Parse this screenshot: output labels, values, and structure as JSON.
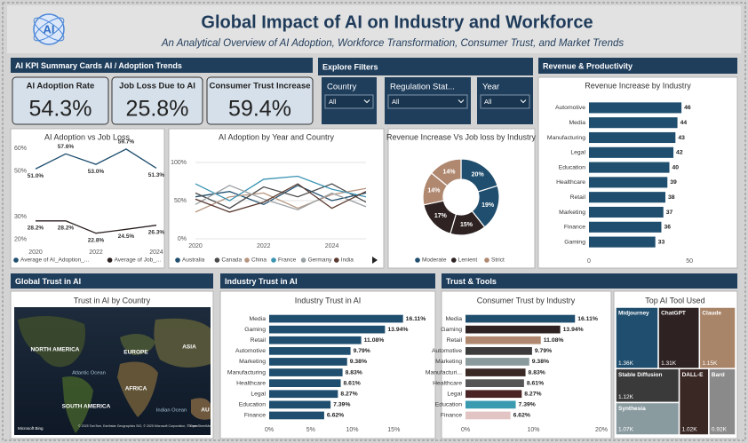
{
  "header": {
    "logo": "AI",
    "title": "Global Impact of AI on Industry and Workforce",
    "subtitle": "An Analytical Overview of AI Adoption, Workforce Transformation, Consumer Trust, and Market Trends"
  },
  "sections": [
    "AI KPI Summary Cards AI / Adoption Trends",
    "Explore Filters",
    "Revenue & Productivity",
    "Global Trust in AI",
    "Industry Trust in AI",
    "Trust & Tools"
  ],
  "kpis": [
    {
      "label": "AI Adoption Rate",
      "value": "54.3%"
    },
    {
      "label": "Job Loss Due to AI",
      "value": "25.8%"
    },
    {
      "label": "Consumer Trust Increase",
      "value": "59.4%"
    }
  ],
  "filters": [
    {
      "label": "Country",
      "value": "All"
    },
    {
      "label": "Regulation Stat...",
      "value": "All"
    },
    {
      "label": "Year",
      "value": "All"
    }
  ],
  "chart_data": [
    {
      "type": "line",
      "title": "AI Adoption vs Job Loss",
      "x": [
        2020,
        2021,
        2022,
        2023,
        2024
      ],
      "xlim": [
        2020,
        2024
      ],
      "xticks": [
        2020,
        2022,
        2024
      ],
      "ylim": [
        18,
        62
      ],
      "yticks": [
        {
          "value": 20,
          "label": "20%"
        },
        {
          "value": 30,
          "label": "30%"
        },
        {
          "value": 50,
          "label": "50%"
        },
        {
          "value": 60,
          "label": "60%"
        }
      ],
      "grid": false,
      "series": [
        {
          "name": "Average of AI_Adoption_...",
          "color": "#1f4e6e",
          "values": [
            51.0,
            57.6,
            53.0,
            59.7,
            51.3
          ],
          "value_labels": [
            "51.0%",
            "57.6%",
            "53.0%",
            "59.7%",
            "51.3%"
          ]
        },
        {
          "name": "Average of Job_...",
          "color": "#2b2020",
          "values": [
            28.2,
            28.2,
            22.8,
            24.5,
            26.3
          ],
          "value_labels": [
            "28.2%",
            "28.2%",
            "22.8%",
            "24.5%",
            "26.3%"
          ]
        }
      ]
    },
    {
      "type": "line",
      "title": "AI Adoption by Year and Country",
      "x": [
        2020,
        2021,
        2022,
        2023,
        2024,
        2025
      ],
      "xlim": [
        2020,
        2025
      ],
      "xticks": [
        2020,
        2022,
        2024
      ],
      "ylim": [
        0,
        100
      ],
      "yticks": [
        {
          "value": 0,
          "label": "0%"
        },
        {
          "value": 50,
          "label": "50%"
        },
        {
          "value": 100,
          "label": "100%"
        }
      ],
      "grid": true,
      "series": [
        {
          "name": "Australia",
          "color": "#1f4e6e",
          "values": [
            55,
            62,
            45,
            70,
            50,
            60
          ]
        },
        {
          "name": "Canada",
          "color": "#4a4a4a",
          "values": [
            60,
            40,
            68,
            55,
            72,
            48
          ]
        },
        {
          "name": "China",
          "color": "#b59580",
          "values": [
            35,
            55,
            60,
            40,
            58,
            66
          ]
        },
        {
          "name": "France",
          "color": "#3a93b3",
          "values": [
            72,
            50,
            78,
            82,
            65,
            55
          ]
        },
        {
          "name": "Germany",
          "color": "#9aa0a3",
          "values": [
            45,
            70,
            52,
            38,
            60,
            42
          ]
        },
        {
          "name": "India",
          "color": "#5a3a30",
          "values": [
            52,
            35,
            48,
            72,
            40,
            62
          ]
        }
      ]
    },
    {
      "type": "donut",
      "title": "Revenue Increase Vs Job loss by Industry",
      "series": [
        {
          "name": "Moderate",
          "color": "#1f4e6e",
          "values": [
            20,
            19
          ],
          "value_labels": [
            "20%",
            "19%"
          ]
        },
        {
          "name": "Lenient",
          "color": "#2e2222",
          "values": [
            15,
            17
          ],
          "value_labels": [
            "15%",
            "17%"
          ]
        },
        {
          "name": "Strict",
          "color": "#b08870",
          "values": [
            14,
            14
          ],
          "value_labels": [
            "14%",
            "14%"
          ]
        }
      ]
    },
    {
      "type": "hbar",
      "title": "Revenue Increase by Industry",
      "categories": [
        "Automotive",
        "Media",
        "Manufacturing",
        "Legal",
        "Education",
        "Healthcare",
        "Retail",
        "Marketing",
        "Finance",
        "Gaming"
      ],
      "values": [
        46,
        44,
        43,
        42,
        40,
        39,
        38,
        37,
        36,
        33
      ],
      "color": "#1f4e6e",
      "xlim": [
        0,
        57
      ],
      "xticks": [
        0,
        50
      ]
    },
    {
      "type": "map",
      "title": "Trust in AI by Country",
      "labels": [
        "NORTH AMERICA",
        "EUROPE",
        "ASIA",
        "Atlantic Ocean",
        "AFRICA",
        "SOUTH AMERICA",
        "Indian Ocean",
        "AU"
      ],
      "brand": "Microsoft Bing",
      "attribution": "© 2025 TomTom, Earthstar Geographics SIO, © 2025 Microsoft Corporation, © OpenStreetMap",
      "terms": "Terms"
    },
    {
      "type": "hbar",
      "title": "Industry Trust in AI",
      "categories": [
        "Media",
        "Gaming",
        "Retail",
        "Automotive",
        "Marketing",
        "Manufacturing",
        "Healthcare",
        "Legal",
        "Education",
        "Finance"
      ],
      "values": [
        16.11,
        13.94,
        11.08,
        9.79,
        9.38,
        8.83,
        8.61,
        8.27,
        7.39,
        6.62
      ],
      "value_labels": [
        "16.11%",
        "13.94%",
        "11.08%",
        "9.79%",
        "9.38%",
        "8.83%",
        "8.61%",
        "8.27%",
        "7.39%",
        "6.62%"
      ],
      "color": "#1f4e6e",
      "xlim": [
        0,
        17
      ],
      "xticks": [
        {
          "value": 0,
          "label": "0%"
        },
        {
          "value": 5,
          "label": "5%"
        },
        {
          "value": 10,
          "label": "10%"
        },
        {
          "value": 15,
          "label": "15%"
        }
      ]
    },
    {
      "type": "hbar",
      "title": "Consumer Trust by Industry",
      "categories": [
        "Media",
        "Gaming",
        "Retail",
        "Automotive",
        "Marketing",
        "Manufacturi...",
        "Healthcare",
        "Legal",
        "Education",
        "Finance"
      ],
      "values": [
        16.11,
        13.94,
        11.08,
        9.79,
        9.38,
        8.83,
        8.61,
        8.27,
        7.39,
        6.62
      ],
      "value_labels": [
        "16.11%",
        "13.94%",
        "11.08%",
        "9.79%",
        "9.38%",
        "8.83%",
        "8.61%",
        "8.27%",
        "7.39%",
        "6.62%"
      ],
      "colors": [
        "#1f4e6e",
        "#2e2222",
        "#b08870",
        "#3c3c3c",
        "#8a9a9d",
        "#3a2824",
        "#555555",
        "#4a2424",
        "#3a9ab0",
        "#e2c4c4"
      ],
      "xlim": [
        0,
        20
      ],
      "xticks": [
        {
          "value": 0,
          "label": "0%"
        },
        {
          "value": 10,
          "label": "10%"
        },
        {
          "value": 20,
          "label": "20%"
        }
      ]
    },
    {
      "type": "treemap",
      "title": "Top AI Tool Used",
      "categories": [
        "Midjourney",
        "ChatGPT",
        "Claude",
        "Stable Diffusion",
        "Synthesia",
        "DALL-E",
        "Bard"
      ],
      "values": [
        1360,
        1310,
        1150,
        1120,
        1070,
        1020,
        920
      ],
      "value_labels": [
        "1.36K",
        "1.31K",
        "1.15K",
        "1.12K",
        "1.07K",
        "1.02K",
        "0.92K"
      ],
      "colors": [
        "#1f4e6e",
        "#2e2222",
        "#a88468",
        "#3a3a3a",
        "#8a9ba0",
        "#3a2824",
        "#8a8a8a"
      ]
    }
  ]
}
